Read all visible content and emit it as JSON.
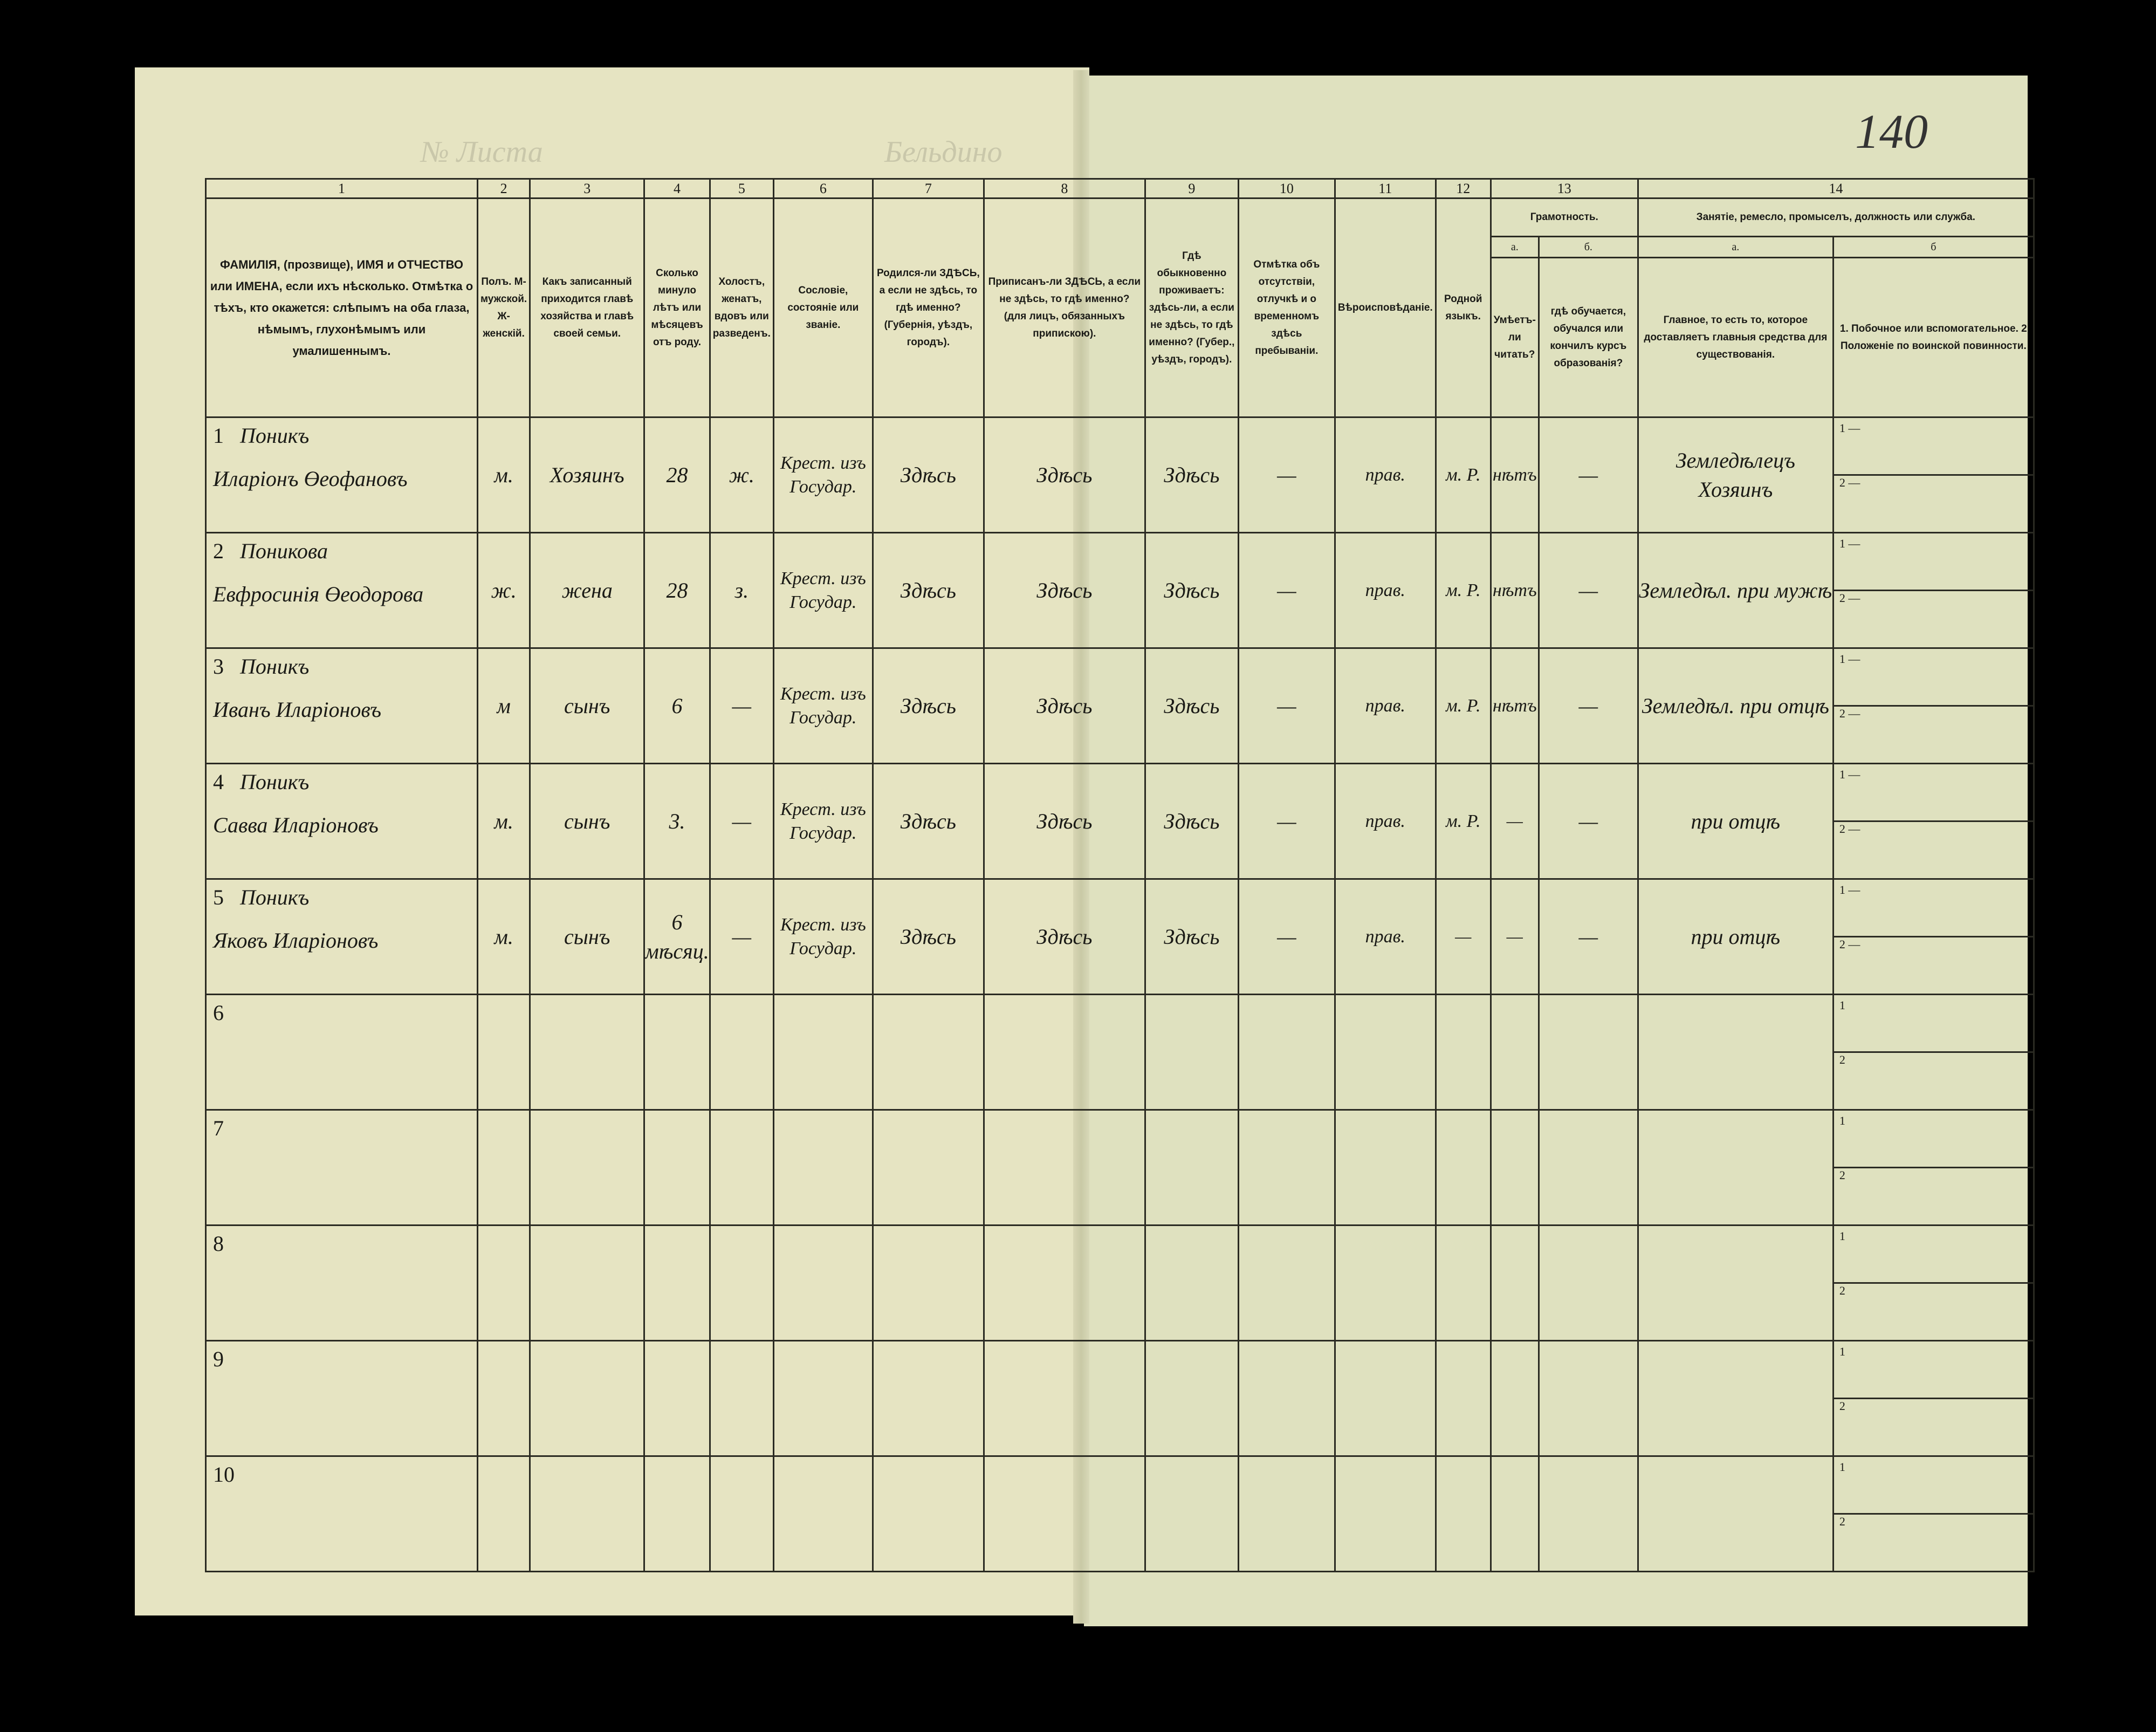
{
  "document": {
    "top_left_faint": "Бельдино",
    "top_sheet_label": "№ Листа",
    "page_number": "140",
    "colors": {
      "background": "#000000",
      "paper": "#e6e4c2",
      "ink": "#1a1a16"
    }
  },
  "columns": [
    {
      "num": "1",
      "header": "ФАМИЛІЯ, (прозвище), ИМЯ и ОТЧЕСТВО или ИМЕНА, если ихъ нѣсколько. Отмѣтка о тѣхъ, кто окажется: слѣпымъ на оба глаза, нѣмымъ, глухонѣмымъ или умалишеннымъ."
    },
    {
      "num": "2",
      "header": "Полъ. М-мужской. Ж-женскій."
    },
    {
      "num": "3",
      "header": "Какъ записанный приходится главѣ хозяйства и главѣ своей семьи."
    },
    {
      "num": "4",
      "header": "Сколько минуло лѣтъ или мѣсяцевъ отъ роду."
    },
    {
      "num": "5",
      "header": "Холостъ, женатъ, вдовъ или разведенъ."
    },
    {
      "num": "6",
      "header": "Сословіе, состояніе или званіе."
    },
    {
      "num": "7",
      "header": "Родился-ли ЗДѢСЬ, а если не здѣсь, то гдѣ именно? (Губернія, уѣздъ, городъ)."
    },
    {
      "num": "8",
      "header": "Приписанъ-ли ЗДѢСЬ, а если не здѣсь, то гдѣ именно? (для лицъ, обязанныхъ припискою)."
    },
    {
      "num": "9",
      "header": "Гдѣ обыкновенно проживаетъ: здѣсь-ли, а если не здѣсь, то гдѣ именно? (Губер., уѣздъ, городъ)."
    },
    {
      "num": "10",
      "header": "Отмѣтка объ отсутствіи, отлучкѣ и о временномъ здѣсь пребываніи."
    },
    {
      "num": "11",
      "header": "Вѣроисповѣданіе."
    },
    {
      "num": "12",
      "header": "Родной языкъ."
    },
    {
      "num": "13",
      "header": "Грамотность.",
      "sub": [
        {
          "letter": "а.",
          "header": "Умѣетъ-ли читать?"
        },
        {
          "letter": "б.",
          "header": "гдѣ обучается, обучался или кончилъ курсъ образованія?"
        }
      ]
    },
    {
      "num": "14",
      "header": "Занятіе, ремесло, промыселъ, должность или служба.",
      "sub": [
        {
          "letter": "а.",
          "header": "Главное, то есть то, которое доставляетъ главныя средства для существованія."
        },
        {
          "letter": "б",
          "header": "1. Побочное или вспомогательное. 2 Положеніе по воинской повинности."
        }
      ]
    }
  ],
  "rows": [
    {
      "n": "1",
      "surname": "Поникъ",
      "given": "Иларіонъ Өеофановъ",
      "sex": "м.",
      "relation": "Хозяинъ",
      "age": "28",
      "marital": "ж.",
      "estate": "Крест. изъ Государ.",
      "born": "Здѣсь",
      "registered": "Здѣсь",
      "resides": "Здѣсь",
      "absence": "—",
      "religion": "прав.",
      "language": "м. Р.",
      "literate": "нѣтъ",
      "education": "—",
      "occupation": "Земледѣлецъ Хозяинъ",
      "side1": "1 —",
      "side2": "2 —"
    },
    {
      "n": "2",
      "surname": "Поникова",
      "given": "Евфросинія Өеодорова",
      "sex": "ж.",
      "relation": "жена",
      "age": "28",
      "marital": "з.",
      "estate": "Крест. изъ Государ.",
      "born": "Здѣсь",
      "registered": "Здѣсь",
      "resides": "Здѣсь",
      "absence": "—",
      "religion": "прав.",
      "language": "м. Р.",
      "literate": "нѣтъ",
      "education": "—",
      "occupation": "Земледѣл. при мужѣ",
      "side1": "1 —",
      "side2": "2 —"
    },
    {
      "n": "3",
      "surname": "Поникъ",
      "given": "Иванъ Иларіоновъ",
      "sex": "м",
      "relation": "сынъ",
      "age": "6",
      "marital": "—",
      "estate": "Крест. изъ Государ.",
      "born": "Здѣсь",
      "registered": "Здѣсь",
      "resides": "Здѣсь",
      "absence": "—",
      "religion": "прав.",
      "language": "м. Р.",
      "literate": "нѣтъ",
      "education": "—",
      "occupation": "Земледѣл. при отцѣ",
      "side1": "1 —",
      "side2": "2 —"
    },
    {
      "n": "4",
      "surname": "Поникъ",
      "given": "Савва Иларіоновъ",
      "sex": "м.",
      "relation": "сынъ",
      "age": "3.",
      "marital": "—",
      "estate": "Крест. изъ Государ.",
      "born": "Здѣсь",
      "registered": "Здѣсь",
      "resides": "Здѣсь",
      "absence": "—",
      "religion": "прав.",
      "language": "м. Р.",
      "literate": "—",
      "education": "—",
      "occupation": "при отцѣ",
      "side1": "1 —",
      "side2": "2 —"
    },
    {
      "n": "5",
      "surname": "Поникъ",
      "given": "Яковъ Иларіоновъ",
      "sex": "м.",
      "relation": "сынъ",
      "age": "6 мѣсяц.",
      "marital": "—",
      "estate": "Крест. изъ Государ.",
      "born": "Здѣсь",
      "registered": "Здѣсь",
      "resides": "Здѣсь",
      "absence": "—",
      "religion": "прав.",
      "language": "—",
      "literate": "—",
      "education": "—",
      "occupation": "при отцѣ",
      "side1": "1 —",
      "side2": "2 —"
    },
    {
      "n": "6",
      "side1": "1",
      "side2": "2"
    },
    {
      "n": "7",
      "side1": "1",
      "side2": "2"
    },
    {
      "n": "8",
      "side1": "1",
      "side2": "2"
    },
    {
      "n": "9",
      "side1": "1",
      "side2": "2"
    },
    {
      "n": "10",
      "side1": "1",
      "side2": "2"
    }
  ]
}
